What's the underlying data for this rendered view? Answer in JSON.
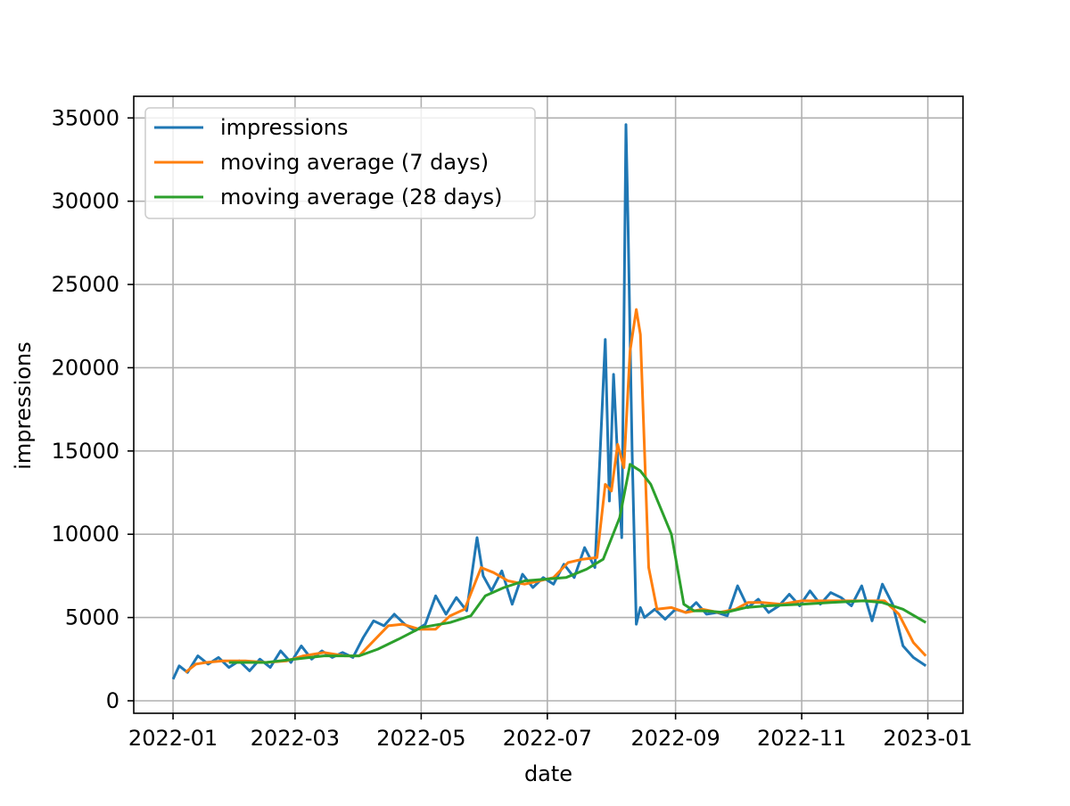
{
  "chart_data": {
    "type": "line",
    "xlabel": "date",
    "ylabel": "impressions",
    "xlim": [
      "2021-12-13",
      "2023-01-18"
    ],
    "ylim": [
      -750,
      36300
    ],
    "x_ticks": [
      "2022-01-01",
      "2022-03-01",
      "2022-05-01",
      "2022-07-01",
      "2022-09-01",
      "2022-11-01",
      "2023-01-01"
    ],
    "x_tick_labels": [
      "2022-01",
      "2022-03",
      "2022-05",
      "2022-07",
      "2022-09",
      "2022-11",
      "2023-01"
    ],
    "y_ticks": [
      0,
      5000,
      10000,
      15000,
      20000,
      25000,
      30000,
      35000
    ],
    "y_tick_labels": [
      "0",
      "5000",
      "10000",
      "15000",
      "20000",
      "25000",
      "30000",
      "35000"
    ],
    "grid": true,
    "legend_position": "upper left",
    "series": [
      {
        "name": "impressions",
        "color": "#1f77b4",
        "x": [
          "2022-01-01",
          "2022-01-04",
          "2022-01-08",
          "2022-01-13",
          "2022-01-18",
          "2022-01-23",
          "2022-01-28",
          "2022-02-02",
          "2022-02-07",
          "2022-02-12",
          "2022-02-17",
          "2022-02-22",
          "2022-02-27",
          "2022-03-04",
          "2022-03-09",
          "2022-03-14",
          "2022-03-19",
          "2022-03-24",
          "2022-03-29",
          "2022-04-03",
          "2022-04-08",
          "2022-04-13",
          "2022-04-18",
          "2022-04-23",
          "2022-04-28",
          "2022-05-03",
          "2022-05-08",
          "2022-05-13",
          "2022-05-18",
          "2022-05-23",
          "2022-05-28",
          "2022-05-31",
          "2022-06-04",
          "2022-06-09",
          "2022-06-14",
          "2022-06-19",
          "2022-06-24",
          "2022-06-29",
          "2022-07-04",
          "2022-07-09",
          "2022-07-14",
          "2022-07-19",
          "2022-07-24",
          "2022-07-29",
          "2022-07-31",
          "2022-08-02",
          "2022-08-04",
          "2022-08-06",
          "2022-08-08",
          "2022-08-09",
          "2022-08-11",
          "2022-08-13",
          "2022-08-15",
          "2022-08-17",
          "2022-08-22",
          "2022-08-27",
          "2022-09-01",
          "2022-09-06",
          "2022-09-11",
          "2022-09-16",
          "2022-09-21",
          "2022-09-26",
          "2022-10-01",
          "2022-10-06",
          "2022-10-11",
          "2022-10-16",
          "2022-10-21",
          "2022-10-26",
          "2022-10-31",
          "2022-11-05",
          "2022-11-10",
          "2022-11-15",
          "2022-11-20",
          "2022-11-25",
          "2022-11-30",
          "2022-12-05",
          "2022-12-10",
          "2022-12-15",
          "2022-12-20",
          "2022-12-25",
          "2022-12-31"
        ],
        "values": [
          1300,
          2100,
          1700,
          2700,
          2200,
          2600,
          2000,
          2400,
          1800,
          2500,
          2000,
          3000,
          2300,
          3300,
          2500,
          3000,
          2600,
          2900,
          2600,
          3800,
          4800,
          4500,
          5200,
          4600,
          4200,
          4600,
          6300,
          5200,
          6200,
          5400,
          9800,
          7500,
          6600,
          7800,
          5800,
          7600,
          6800,
          7400,
          7000,
          8200,
          7400,
          9200,
          8000,
          21700,
          12000,
          19600,
          14500,
          9800,
          34600,
          28800,
          15000,
          4600,
          5600,
          5000,
          5500,
          4900,
          5500,
          5300,
          5900,
          5200,
          5300,
          5100,
          6900,
          5600,
          6100,
          5300,
          5700,
          6400,
          5700,
          6600,
          5800,
          6500,
          6200,
          5700,
          6900,
          4800,
          7000,
          5800,
          3300,
          2600,
          2100
        ]
      },
      {
        "name": "moving average (7 days)",
        "color": "#ff7f0e",
        "x": [
          "2022-01-07",
          "2022-01-12",
          "2022-01-17",
          "2022-01-25",
          "2022-02-05",
          "2022-02-15",
          "2022-02-25",
          "2022-03-05",
          "2022-03-15",
          "2022-03-25",
          "2022-04-01",
          "2022-04-08",
          "2022-04-15",
          "2022-04-22",
          "2022-04-30",
          "2022-05-08",
          "2022-05-15",
          "2022-05-22",
          "2022-05-30",
          "2022-06-05",
          "2022-06-12",
          "2022-06-20",
          "2022-06-27",
          "2022-07-04",
          "2022-07-11",
          "2022-07-18",
          "2022-07-25",
          "2022-07-29",
          "2022-08-01",
          "2022-08-04",
          "2022-08-07",
          "2022-08-10",
          "2022-08-13",
          "2022-08-15",
          "2022-08-19",
          "2022-08-23",
          "2022-08-30",
          "2022-09-06",
          "2022-09-14",
          "2022-09-22",
          "2022-09-30",
          "2022-10-06",
          "2022-10-13",
          "2022-10-22",
          "2022-11-01",
          "2022-11-11",
          "2022-11-21",
          "2022-12-01",
          "2022-12-11",
          "2022-12-18",
          "2022-12-25",
          "2022-12-31"
        ],
        "values": [
          1700,
          2200,
          2300,
          2400,
          2400,
          2300,
          2400,
          2700,
          2900,
          2700,
          2700,
          3600,
          4500,
          4600,
          4300,
          4300,
          5100,
          5500,
          8000,
          7700,
          7200,
          7000,
          7200,
          7400,
          8300,
          8500,
          8600,
          13000,
          12600,
          15400,
          14000,
          21000,
          23500,
          22000,
          8000,
          5500,
          5600,
          5300,
          5500,
          5300,
          5500,
          5900,
          5900,
          5800,
          6000,
          6000,
          6000,
          6000,
          6000,
          5200,
          3500,
          2700
        ]
      },
      {
        "name": "moving average (28 days)",
        "color": "#2ca02c",
        "x": [
          "2022-01-28",
          "2022-02-15",
          "2022-03-01",
          "2022-03-15",
          "2022-04-01",
          "2022-04-10",
          "2022-04-20",
          "2022-05-01",
          "2022-05-15",
          "2022-05-25",
          "2022-06-01",
          "2022-06-10",
          "2022-06-20",
          "2022-06-30",
          "2022-07-10",
          "2022-07-20",
          "2022-07-28",
          "2022-08-05",
          "2022-08-10",
          "2022-08-15",
          "2022-08-20",
          "2022-08-25",
          "2022-08-30",
          "2022-09-05",
          "2022-09-10",
          "2022-09-15",
          "2022-09-25",
          "2022-10-05",
          "2022-10-15",
          "2022-11-01",
          "2022-11-15",
          "2022-12-01",
          "2022-12-10",
          "2022-12-20",
          "2022-12-31"
        ],
        "values": [
          2300,
          2300,
          2500,
          2700,
          2700,
          3100,
          3700,
          4400,
          4700,
          5100,
          6300,
          6800,
          7200,
          7300,
          7400,
          7900,
          8500,
          11000,
          14200,
          13800,
          13000,
          11500,
          10000,
          5800,
          5400,
          5400,
          5300,
          5600,
          5700,
          5800,
          5900,
          6000,
          5900,
          5500,
          4700
        ]
      }
    ]
  }
}
